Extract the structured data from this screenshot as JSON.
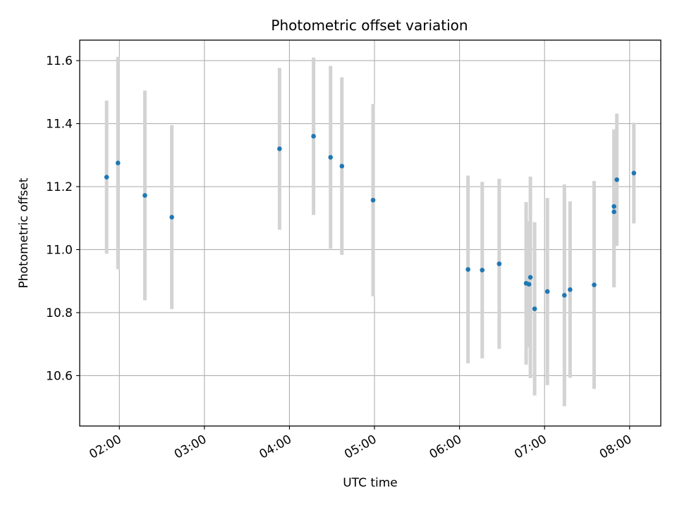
{
  "chart_data": {
    "type": "scatter",
    "title": "Photometric offset variation",
    "xlabel": "UTC time",
    "ylabel": "Photometric offset",
    "x_axis": "time",
    "xlim": [
      "01:32",
      "08:22"
    ],
    "ylim": [
      10.44,
      11.665
    ],
    "grid": true,
    "xticks": [
      "02:00",
      "03:00",
      "04:00",
      "05:00",
      "06:00",
      "07:00",
      "08:00"
    ],
    "yticks": [
      10.6,
      10.8,
      11.0,
      11.2,
      11.4,
      11.6
    ],
    "ytick_labels": [
      "10.6",
      "10.8",
      "11.0",
      "11.2",
      "11.4",
      "11.6"
    ],
    "point_color": "#1f77b4",
    "errorbar_color": "#d3d3d3",
    "points": [
      {
        "x": "01:51",
        "y": 11.23,
        "yerr": 0.243
      },
      {
        "x": "01:59",
        "y": 11.275,
        "yerr": 0.337
      },
      {
        "x": "02:18",
        "y": 11.172,
        "yerr": 0.333
      },
      {
        "x": "02:37",
        "y": 11.103,
        "yerr": 0.292
      },
      {
        "x": "03:53",
        "y": 11.32,
        "yerr": 0.257
      },
      {
        "x": "04:17",
        "y": 11.36,
        "yerr": 0.25
      },
      {
        "x": "04:29",
        "y": 11.293,
        "yerr": 0.29
      },
      {
        "x": "04:37",
        "y": 11.265,
        "yerr": 0.282
      },
      {
        "x": "04:59",
        "y": 11.157,
        "yerr": 0.305
      },
      {
        "x": "06:06",
        "y": 10.937,
        "yerr": 0.298
      },
      {
        "x": "06:16",
        "y": 10.935,
        "yerr": 0.28
      },
      {
        "x": "06:28",
        "y": 10.955,
        "yerr": 0.27
      },
      {
        "x": "06:47",
        "y": 10.893,
        "yerr": 0.258
      },
      {
        "x": "06:49",
        "y": 10.89,
        "yerr": 0.2
      },
      {
        "x": "06:50",
        "y": 10.912,
        "yerr": 0.32
      },
      {
        "x": "06:53",
        "y": 10.812,
        "yerr": 0.275
      },
      {
        "x": "07:02",
        "y": 10.867,
        "yerr": 0.297
      },
      {
        "x": "07:14",
        "y": 10.855,
        "yerr": 0.352
      },
      {
        "x": "07:18",
        "y": 10.873,
        "yerr": 0.28
      },
      {
        "x": "07:35",
        "y": 10.888,
        "yerr": 0.33
      },
      {
        "x": "07:49",
        "y": 11.137,
        "yerr": 0.245
      },
      {
        "x": "07:49",
        "y": 11.12,
        "yerr": 0.24
      },
      {
        "x": "07:51",
        "y": 11.222,
        "yerr": 0.21
      },
      {
        "x": "08:03",
        "y": 11.243,
        "yerr": 0.16
      }
    ]
  }
}
